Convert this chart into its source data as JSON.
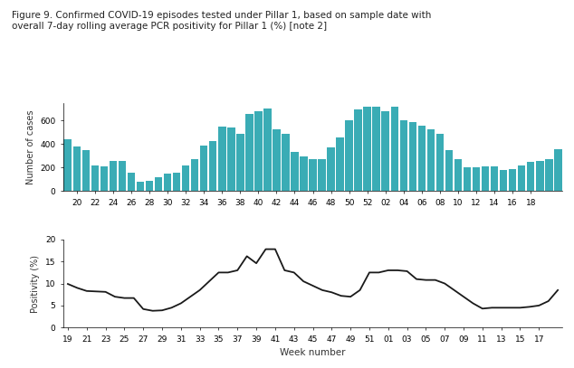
{
  "title": "Figure 9. Confirmed COVID-19 episodes tested under Pillar 1, based on sample date with\noverall 7-day rolling average PCR positivity for Pillar 1 (%) [note 2]",
  "bar_color": "#3aacb5",
  "line_color": "#1a1a1a",
  "bar_ylabel": "Number of cases",
  "line_ylabel": "Positivity (%)",
  "xlabel": "Week number",
  "bar_yticks": [
    0,
    200,
    400,
    600
  ],
  "line_yticks": [
    0,
    5,
    10,
    15,
    20
  ],
  "bar_xtick_labels": [
    "20",
    "22",
    "24",
    "26",
    "28",
    "30",
    "32",
    "34",
    "36",
    "38",
    "40",
    "42",
    "44",
    "46",
    "48",
    "50",
    "52",
    "02",
    "04",
    "06",
    "08",
    "10",
    "12",
    "14",
    "16",
    "18"
  ],
  "line_xtick_labels": [
    "19",
    "21",
    "23",
    "25",
    "27",
    "29",
    "31",
    "33",
    "35",
    "37",
    "39",
    "41",
    "43",
    "45",
    "47",
    "49",
    "51",
    "01",
    "03",
    "05",
    "07",
    "09",
    "11",
    "13",
    "15",
    "17"
  ],
  "bar_values": [
    440,
    380,
    350,
    220,
    210,
    260,
    255,
    160,
    80,
    90,
    120,
    145,
    160,
    220,
    275,
    390,
    430,
    550,
    540,
    490,
    660,
    680,
    700,
    530,
    490,
    330,
    295,
    270,
    270,
    375,
    460,
    600,
    695,
    720,
    720,
    680,
    720,
    600,
    590,
    560,
    530,
    490,
    350,
    270,
    200,
    200,
    210,
    210,
    180,
    190,
    220,
    250,
    260,
    270,
    360
  ],
  "line_values": [
    9.9,
    9.0,
    8.3,
    8.2,
    8.1,
    7.0,
    6.7,
    6.7,
    4.2,
    3.8,
    3.9,
    4.5,
    5.5,
    7.0,
    8.5,
    10.5,
    12.5,
    12.5,
    13.0,
    16.2,
    14.6,
    17.8,
    17.8,
    13.0,
    12.5,
    10.5,
    9.5,
    8.5,
    8.0,
    7.2,
    7.0,
    8.5,
    12.5,
    12.5,
    13.0,
    13.0,
    12.8,
    11.0,
    10.8,
    10.8,
    10.0,
    8.5,
    7.0,
    5.5,
    4.3,
    4.5,
    4.5,
    4.5,
    4.5,
    4.7,
    5.0,
    6.0,
    8.5
  ]
}
